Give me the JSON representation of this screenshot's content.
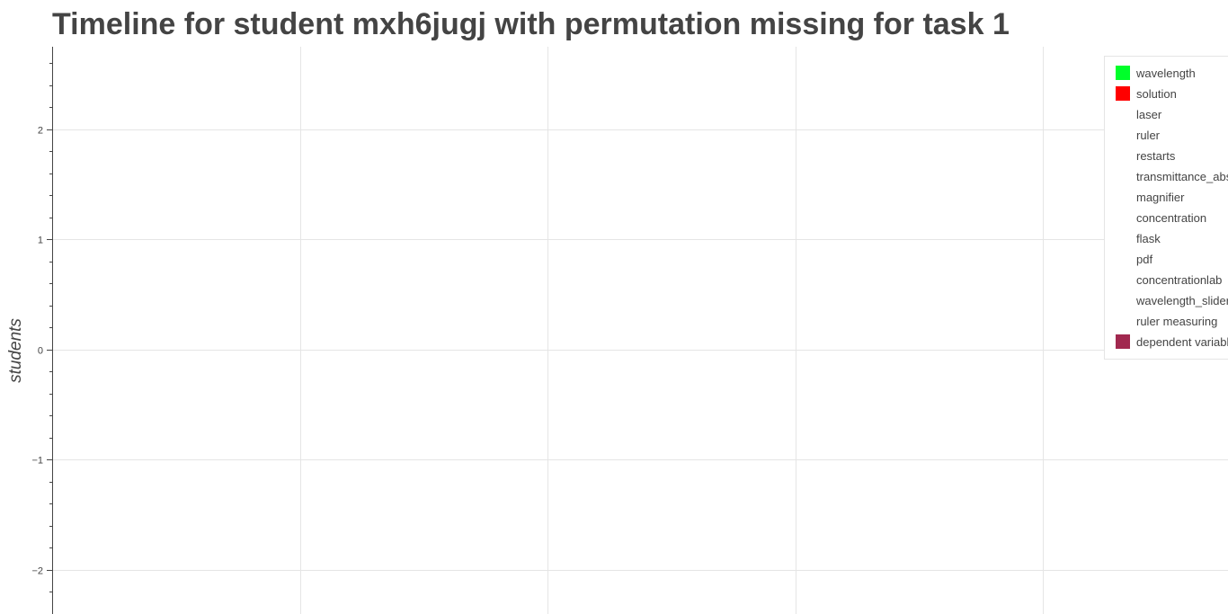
{
  "chart_data": {
    "type": "bar",
    "title": "Timeline for student mxh6jugj with permutation missing for task 1",
    "ylabel": "students",
    "xlabel": "",
    "ylim": [
      -2.4,
      2.75
    ],
    "yticks": [
      2,
      1,
      0,
      -1,
      -2
    ],
    "ytick_labels": [
      "2",
      "1",
      "0",
      "−1",
      "−2"
    ],
    "grid": true,
    "legend_position": "top-right",
    "series": [
      {
        "name": "wavelength",
        "color": "#00ff2a",
        "values": []
      },
      {
        "name": "solution",
        "color": "#ff0000",
        "values": []
      },
      {
        "name": "laser",
        "color": "#ffffff",
        "values": []
      },
      {
        "name": "ruler",
        "color": "#ffffff",
        "values": []
      },
      {
        "name": "restarts",
        "color": "#ffffff",
        "values": []
      },
      {
        "name": "transmittance_abs",
        "color": "#ffffff",
        "values": []
      },
      {
        "name": "magnifier",
        "color": "#ffffff",
        "values": []
      },
      {
        "name": "concentration",
        "color": "#ffffff",
        "values": []
      },
      {
        "name": "flask",
        "color": "#ffffff",
        "values": []
      },
      {
        "name": "pdf",
        "color": "#ffffff",
        "values": []
      },
      {
        "name": "concentrationlab",
        "color": "#ffffff",
        "values": []
      },
      {
        "name": "wavelength_slider",
        "color": "#ffffff",
        "values": []
      },
      {
        "name": "ruler measuring",
        "color": "#ffffff",
        "values": []
      },
      {
        "name": "dependent variable",
        "color": "#a1284f",
        "values": []
      }
    ]
  }
}
